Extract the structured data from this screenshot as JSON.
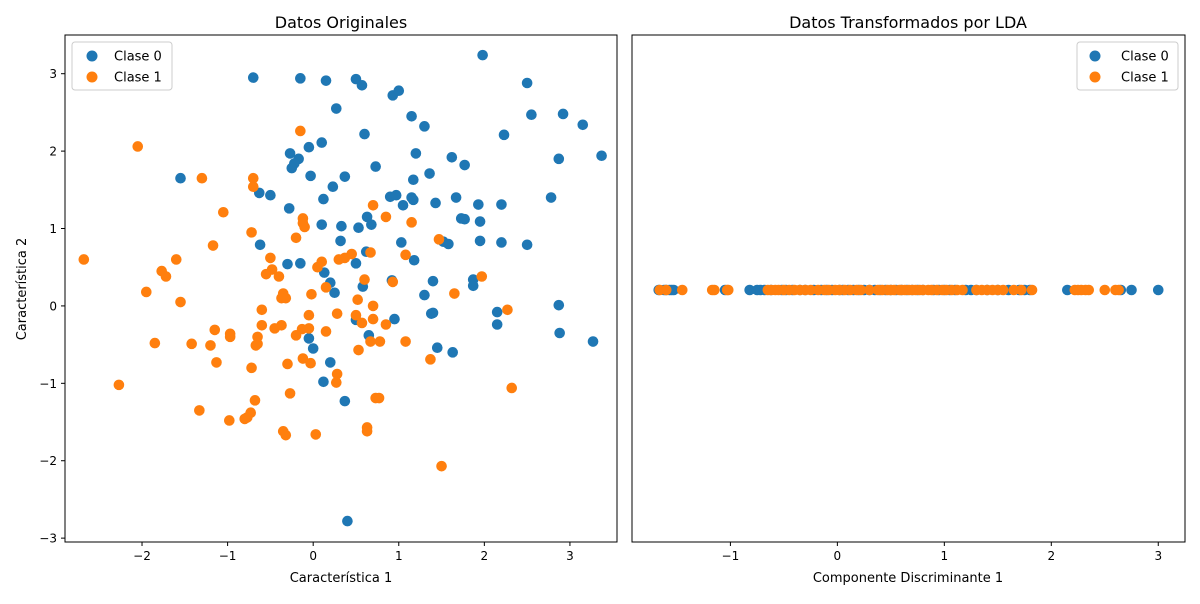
{
  "colors": {
    "clase0": "#1f77b4",
    "clase1": "#ff7f0e"
  },
  "chart_data": [
    {
      "type": "scatter",
      "title": "Datos Originales",
      "xlabel": "Característica 1",
      "ylabel": "Característica 2",
      "xlim": [
        -2.9,
        3.55
      ],
      "ylim": [
        -3.05,
        3.5
      ],
      "xticks": [
        -2,
        -1,
        0,
        1,
        2,
        3
      ],
      "yticks": [
        -3,
        -2,
        -1,
        0,
        1,
        2,
        3
      ],
      "legend": "top-left",
      "series": [
        {
          "name": "Clase 0",
          "color": "#1f77b4",
          "points": [
            [
              -0.7,
              2.95
            ],
            [
              -0.15,
              2.94
            ],
            [
              0.15,
              2.91
            ],
            [
              0.5,
              2.93
            ],
            [
              0.57,
              2.85
            ],
            [
              0.93,
              2.72
            ],
            [
              1.0,
              2.78
            ],
            [
              1.98,
              3.24
            ],
            [
              2.5,
              2.88
            ],
            [
              0.27,
              2.55
            ],
            [
              1.15,
              2.45
            ],
            [
              2.55,
              2.47
            ],
            [
              2.92,
              2.48
            ],
            [
              3.15,
              2.34
            ],
            [
              1.3,
              2.32
            ],
            [
              2.23,
              2.21
            ],
            [
              0.6,
              2.22
            ],
            [
              0.1,
              2.11
            ],
            [
              -0.05,
              2.05
            ],
            [
              -0.27,
              1.97
            ],
            [
              -0.17,
              1.9
            ],
            [
              1.2,
              1.97
            ],
            [
              1.62,
              1.92
            ],
            [
              2.87,
              1.9
            ],
            [
              3.37,
              1.94
            ],
            [
              -0.22,
              1.84
            ],
            [
              -0.25,
              1.78
            ],
            [
              0.73,
              1.8
            ],
            [
              1.77,
              1.82
            ],
            [
              -0.03,
              1.68
            ],
            [
              0.37,
              1.67
            ],
            [
              1.36,
              1.71
            ],
            [
              1.17,
              1.63
            ],
            [
              -1.55,
              1.65
            ],
            [
              0.23,
              1.54
            ],
            [
              -0.63,
              1.46
            ],
            [
              -0.5,
              1.43
            ],
            [
              0.9,
              1.41
            ],
            [
              0.97,
              1.43
            ],
            [
              1.15,
              1.4
            ],
            [
              1.17,
              1.37
            ],
            [
              0.12,
              1.38
            ],
            [
              1.67,
              1.4
            ],
            [
              2.78,
              1.4
            ],
            [
              1.05,
              1.3
            ],
            [
              1.43,
              1.33
            ],
            [
              1.93,
              1.31
            ],
            [
              2.2,
              1.31
            ],
            [
              -0.28,
              1.26
            ],
            [
              0.63,
              1.15
            ],
            [
              1.73,
              1.13
            ],
            [
              1.77,
              1.12
            ],
            [
              1.95,
              1.09
            ],
            [
              0.1,
              1.05
            ],
            [
              0.33,
              1.03
            ],
            [
              0.53,
              1.01
            ],
            [
              0.68,
              1.05
            ],
            [
              0.32,
              0.84
            ],
            [
              1.03,
              0.82
            ],
            [
              1.52,
              0.83
            ],
            [
              1.58,
              0.8
            ],
            [
              1.95,
              0.84
            ],
            [
              2.2,
              0.82
            ],
            [
              2.5,
              0.79
            ],
            [
              -0.62,
              0.79
            ],
            [
              0.62,
              0.7
            ],
            [
              -0.3,
              0.54
            ],
            [
              -0.15,
              0.55
            ],
            [
              0.5,
              0.55
            ],
            [
              0.13,
              0.43
            ],
            [
              0.2,
              0.3
            ],
            [
              1.18,
              0.59
            ],
            [
              0.58,
              0.25
            ],
            [
              0.25,
              0.17
            ],
            [
              0.92,
              0.33
            ],
            [
              1.4,
              0.32
            ],
            [
              1.87,
              0.34
            ],
            [
              1.87,
              0.26
            ],
            [
              1.3,
              0.14
            ],
            [
              2.15,
              -0.08
            ],
            [
              2.87,
              0.01
            ],
            [
              1.38,
              -0.1
            ],
            [
              1.4,
              -0.09
            ],
            [
              0.95,
              -0.17
            ],
            [
              0.5,
              -0.18
            ],
            [
              2.15,
              -0.24
            ],
            [
              0.65,
              -0.38
            ],
            [
              -0.05,
              -0.42
            ],
            [
              2.88,
              -0.35
            ],
            [
              3.27,
              -0.46
            ],
            [
              0.0,
              -0.55
            ],
            [
              1.45,
              -0.54
            ],
            [
              1.63,
              -0.6
            ],
            [
              0.2,
              -0.73
            ],
            [
              0.12,
              -0.98
            ],
            [
              0.37,
              -1.23
            ],
            [
              0.4,
              -2.78
            ]
          ]
        },
        {
          "name": "Clase 1",
          "color": "#ff7f0e",
          "points": [
            [
              -2.05,
              2.06
            ],
            [
              -0.15,
              2.26
            ],
            [
              -1.3,
              1.65
            ],
            [
              -0.7,
              1.65
            ],
            [
              -0.7,
              1.54
            ],
            [
              -1.05,
              1.21
            ],
            [
              0.7,
              1.3
            ],
            [
              0.85,
              1.15
            ],
            [
              1.15,
              1.08
            ],
            [
              -0.12,
              1.13
            ],
            [
              -0.12,
              1.07
            ],
            [
              -0.1,
              1.02
            ],
            [
              -0.72,
              0.95
            ],
            [
              -0.2,
              0.88
            ],
            [
              1.47,
              0.86
            ],
            [
              -1.17,
              0.78
            ],
            [
              0.45,
              0.67
            ],
            [
              0.67,
              0.69
            ],
            [
              0.37,
              0.62
            ],
            [
              1.08,
              0.66
            ],
            [
              -2.68,
              0.6
            ],
            [
              -1.6,
              0.6
            ],
            [
              -0.5,
              0.62
            ],
            [
              0.1,
              0.57
            ],
            [
              0.3,
              0.6
            ],
            [
              0.05,
              0.5
            ],
            [
              -0.48,
              0.47
            ],
            [
              -1.77,
              0.45
            ],
            [
              -1.72,
              0.38
            ],
            [
              -0.55,
              0.41
            ],
            [
              -0.4,
              0.38
            ],
            [
              1.97,
              0.38
            ],
            [
              0.6,
              0.34
            ],
            [
              0.93,
              0.31
            ],
            [
              0.15,
              0.24
            ],
            [
              -1.95,
              0.18
            ],
            [
              -0.35,
              0.16
            ],
            [
              -0.02,
              0.15
            ],
            [
              1.65,
              0.16
            ],
            [
              -0.37,
              0.1
            ],
            [
              -0.32,
              0.1
            ],
            [
              0.52,
              0.08
            ],
            [
              -1.55,
              0.05
            ],
            [
              0.7,
              0.0
            ],
            [
              -0.6,
              -0.05
            ],
            [
              2.27,
              -0.05
            ],
            [
              -0.05,
              -0.12
            ],
            [
              0.28,
              -0.1
            ],
            [
              0.5,
              -0.12
            ],
            [
              0.7,
              -0.17
            ],
            [
              0.57,
              -0.22
            ],
            [
              -0.6,
              -0.25
            ],
            [
              -0.37,
              -0.25
            ],
            [
              0.85,
              -0.24
            ],
            [
              -1.15,
              -0.31
            ],
            [
              -0.05,
              -0.29
            ],
            [
              -0.13,
              -0.3
            ],
            [
              0.15,
              -0.33
            ],
            [
              -0.45,
              -0.29
            ],
            [
              -0.97,
              -0.36
            ],
            [
              -0.97,
              -0.4
            ],
            [
              -0.2,
              -0.38
            ],
            [
              -0.65,
              -0.4
            ],
            [
              -1.85,
              -0.48
            ],
            [
              -1.42,
              -0.49
            ],
            [
              -1.2,
              -0.51
            ],
            [
              -0.65,
              -0.49
            ],
            [
              -0.67,
              -0.51
            ],
            [
              1.08,
              -0.46
            ],
            [
              0.67,
              -0.46
            ],
            [
              0.78,
              -0.46
            ],
            [
              0.53,
              -0.57
            ],
            [
              -1.13,
              -0.73
            ],
            [
              -0.12,
              -0.68
            ],
            [
              -0.3,
              -0.75
            ],
            [
              -0.03,
              -0.74
            ],
            [
              1.37,
              -0.69
            ],
            [
              -0.72,
              -0.8
            ],
            [
              0.28,
              -0.88
            ],
            [
              0.27,
              -0.99
            ],
            [
              -2.27,
              -1.02
            ],
            [
              2.32,
              -1.06
            ],
            [
              -0.27,
              -1.13
            ],
            [
              0.73,
              -1.19
            ],
            [
              0.77,
              -1.19
            ],
            [
              -0.68,
              -1.22
            ],
            [
              -1.33,
              -1.35
            ],
            [
              -0.73,
              -1.38
            ],
            [
              -0.77,
              -1.44
            ],
            [
              -0.8,
              -1.46
            ],
            [
              -0.98,
              -1.48
            ],
            [
              0.63,
              -1.57
            ],
            [
              0.63,
              -1.62
            ],
            [
              -0.35,
              -1.62
            ],
            [
              -0.32,
              -1.67
            ],
            [
              0.03,
              -1.66
            ],
            [
              1.5,
              -2.07
            ]
          ]
        }
      ]
    },
    {
      "type": "scatter",
      "title": "Datos Transformados por LDA",
      "xlabel": "Componente Discriminante 1",
      "ylabel": "",
      "xlim": [
        -1.92,
        3.25
      ],
      "xticks": [
        -1,
        0,
        1,
        2,
        3
      ],
      "legend": "top-right",
      "series": [
        {
          "name": "Clase 0",
          "color": "#1f77b4",
          "y_value": 0,
          "x": [
            -1.67,
            -1.62,
            -1.6,
            -1.57,
            -1.55,
            -1.53,
            -1.05,
            -0.82,
            -0.75,
            -0.72,
            -0.68,
            -0.62,
            -0.52,
            -0.48,
            -0.42,
            -0.35,
            -0.3,
            -0.22,
            -0.15,
            -0.1,
            -0.05,
            0.02,
            0.05,
            0.1,
            0.15,
            0.2,
            0.25,
            0.3,
            0.35,
            0.4,
            0.45,
            0.5,
            0.55,
            0.6,
            0.65,
            0.7,
            0.75,
            0.8,
            0.9,
            0.95,
            1.0,
            1.05,
            1.1,
            1.2,
            1.25,
            1.3,
            1.4,
            1.5,
            1.6,
            1.7,
            1.75,
            1.8,
            2.15,
            2.65,
            2.75,
            3.0
          ]
        },
        {
          "name": "Clase 1",
          "color": "#ff7f0e",
          "y_value": 0,
          "x": [
            -1.66,
            -1.6,
            -1.45,
            -1.17,
            -1.15,
            -1.03,
            -1.02,
            -0.65,
            -0.62,
            -0.58,
            -0.55,
            -0.5,
            -0.45,
            -0.4,
            -0.35,
            -0.3,
            -0.25,
            -0.18,
            -0.12,
            -0.08,
            -0.02,
            0.02,
            0.07,
            0.12,
            0.18,
            0.22,
            0.3,
            0.38,
            0.42,
            0.47,
            0.5,
            0.53,
            0.58,
            0.6,
            0.63,
            0.67,
            0.7,
            0.73,
            0.77,
            0.8,
            0.85,
            0.88,
            0.93,
            0.98,
            1.02,
            1.07,
            1.12,
            1.17,
            1.3,
            1.35,
            1.4,
            1.45,
            1.5,
            1.55,
            1.65,
            1.72,
            1.82,
            2.22,
            2.25,
            2.28,
            2.32,
            2.35,
            2.5,
            2.6,
            2.63
          ]
        }
      ]
    }
  ]
}
